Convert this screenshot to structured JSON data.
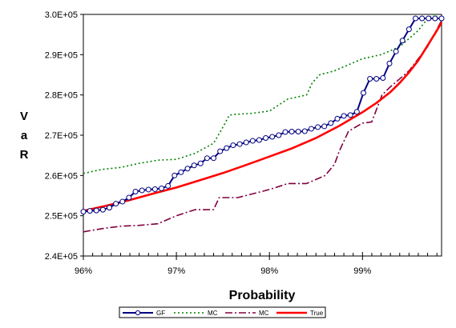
{
  "chart_data": {
    "type": "line",
    "xlabel": "Probability",
    "ylabel": "VaR",
    "xlim": [
      0.96,
      0.9985
    ],
    "ylim": [
      240000,
      300000
    ],
    "x_ticks": [
      0.96,
      0.97,
      0.98,
      0.99
    ],
    "x_tick_labels": [
      "96%",
      "97%",
      "98%",
      "99%"
    ],
    "y_ticks": [
      240000,
      250000,
      260000,
      270000,
      280000,
      290000,
      300000
    ],
    "y_tick_labels": [
      "2.4E+05",
      "2.5E+05",
      "2.6E+05",
      "2.7E+05",
      "2.8E+05",
      "2.9E+05",
      "3.0E+05"
    ],
    "legend_position": "bottom-center",
    "grid": false,
    "series": [
      {
        "name": "GF",
        "color": "#000080",
        "style": "solid-markers",
        "x": [
          0.96,
          0.9607,
          0.9614,
          0.9621,
          0.9628,
          0.9635,
          0.9642,
          0.9649,
          0.9656,
          0.9663,
          0.967,
          0.9677,
          0.9684,
          0.9691,
          0.9698,
          0.9705,
          0.9712,
          0.9719,
          0.9726,
          0.9733,
          0.974,
          0.9747,
          0.9754,
          0.9761,
          0.9768,
          0.9775,
          0.9782,
          0.9789,
          0.9796,
          0.9803,
          0.981,
          0.9817,
          0.9824,
          0.9831,
          0.9838,
          0.9845,
          0.9852,
          0.9859,
          0.9866,
          0.9873,
          0.988,
          0.9887,
          0.9894,
          0.9901,
          0.9908,
          0.9915,
          0.9922,
          0.9929,
          0.9936,
          0.9943,
          0.995,
          0.9957,
          0.9964,
          0.9971,
          0.9978,
          0.9985
        ],
        "y": [
          251000,
          251200,
          251300,
          251500,
          252000,
          253000,
          253500,
          254500,
          256000,
          256300,
          256500,
          256600,
          256800,
          257400,
          260000,
          260800,
          261700,
          262500,
          263000,
          264300,
          264300,
          266000,
          266800,
          267500,
          267800,
          268200,
          268600,
          268800,
          269300,
          269600,
          270000,
          270800,
          270900,
          270900,
          271000,
          271600,
          272000,
          272200,
          273000,
          274100,
          274800,
          275000,
          275800,
          280500,
          284000,
          284000,
          284200,
          287800,
          290800,
          293500,
          296300,
          299000,
          299000,
          299000,
          299000,
          299000
        ]
      },
      {
        "name": "MC",
        "color": "#008000",
        "style": "dotted",
        "x": [
          0.96,
          0.962,
          0.964,
          0.966,
          0.968,
          0.97,
          0.972,
          0.974,
          0.975,
          0.9757,
          0.9764,
          0.978,
          0.98,
          0.982,
          0.984,
          0.9846,
          0.9854,
          0.987,
          0.99,
          0.992,
          0.994,
          0.996,
          0.997,
          0.9977,
          0.998
        ],
        "y": [
          260500,
          261500,
          262000,
          263000,
          263800,
          264000,
          265500,
          268000,
          272000,
          275000,
          275200,
          275400,
          276000,
          279000,
          280000,
          283000,
          285000,
          286000,
          289000,
          290000,
          292000,
          296000,
          299000,
          300000,
          299500
        ]
      },
      {
        "name": "MC",
        "color": "#800040",
        "style": "dashdot",
        "x": [
          0.96,
          0.962,
          0.964,
          0.966,
          0.968,
          0.97,
          0.972,
          0.974,
          0.9746,
          0.9766,
          0.98,
          0.982,
          0.984,
          0.986,
          0.987,
          0.9875,
          0.9885,
          0.99,
          0.991,
          0.9921,
          0.993,
          0.995,
          0.997,
          0.9985
        ],
        "y": [
          246000,
          246800,
          247400,
          247600,
          248000,
          250000,
          251500,
          251500,
          254500,
          254500,
          256500,
          258000,
          258000,
          260000,
          262800,
          266000,
          271000,
          273000,
          273300,
          280000,
          282000,
          286000,
          292000,
          298500
        ]
      },
      {
        "name": "True",
        "color": "#ff0000",
        "style": "solid-thick",
        "x": [
          0.96,
          0.9625,
          0.965,
          0.9675,
          0.97,
          0.9725,
          0.975,
          0.9775,
          0.98,
          0.9825,
          0.985,
          0.9875,
          0.99,
          0.9915,
          0.993,
          0.994,
          0.995,
          0.996,
          0.997,
          0.998,
          0.9985
        ],
        "y": [
          251200,
          252500,
          253900,
          255500,
          257000,
          258800,
          260600,
          262600,
          264700,
          266800,
          269300,
          272300,
          275700,
          278000,
          280700,
          283000,
          285600,
          288600,
          292300,
          296000,
          298000
        ]
      }
    ]
  }
}
